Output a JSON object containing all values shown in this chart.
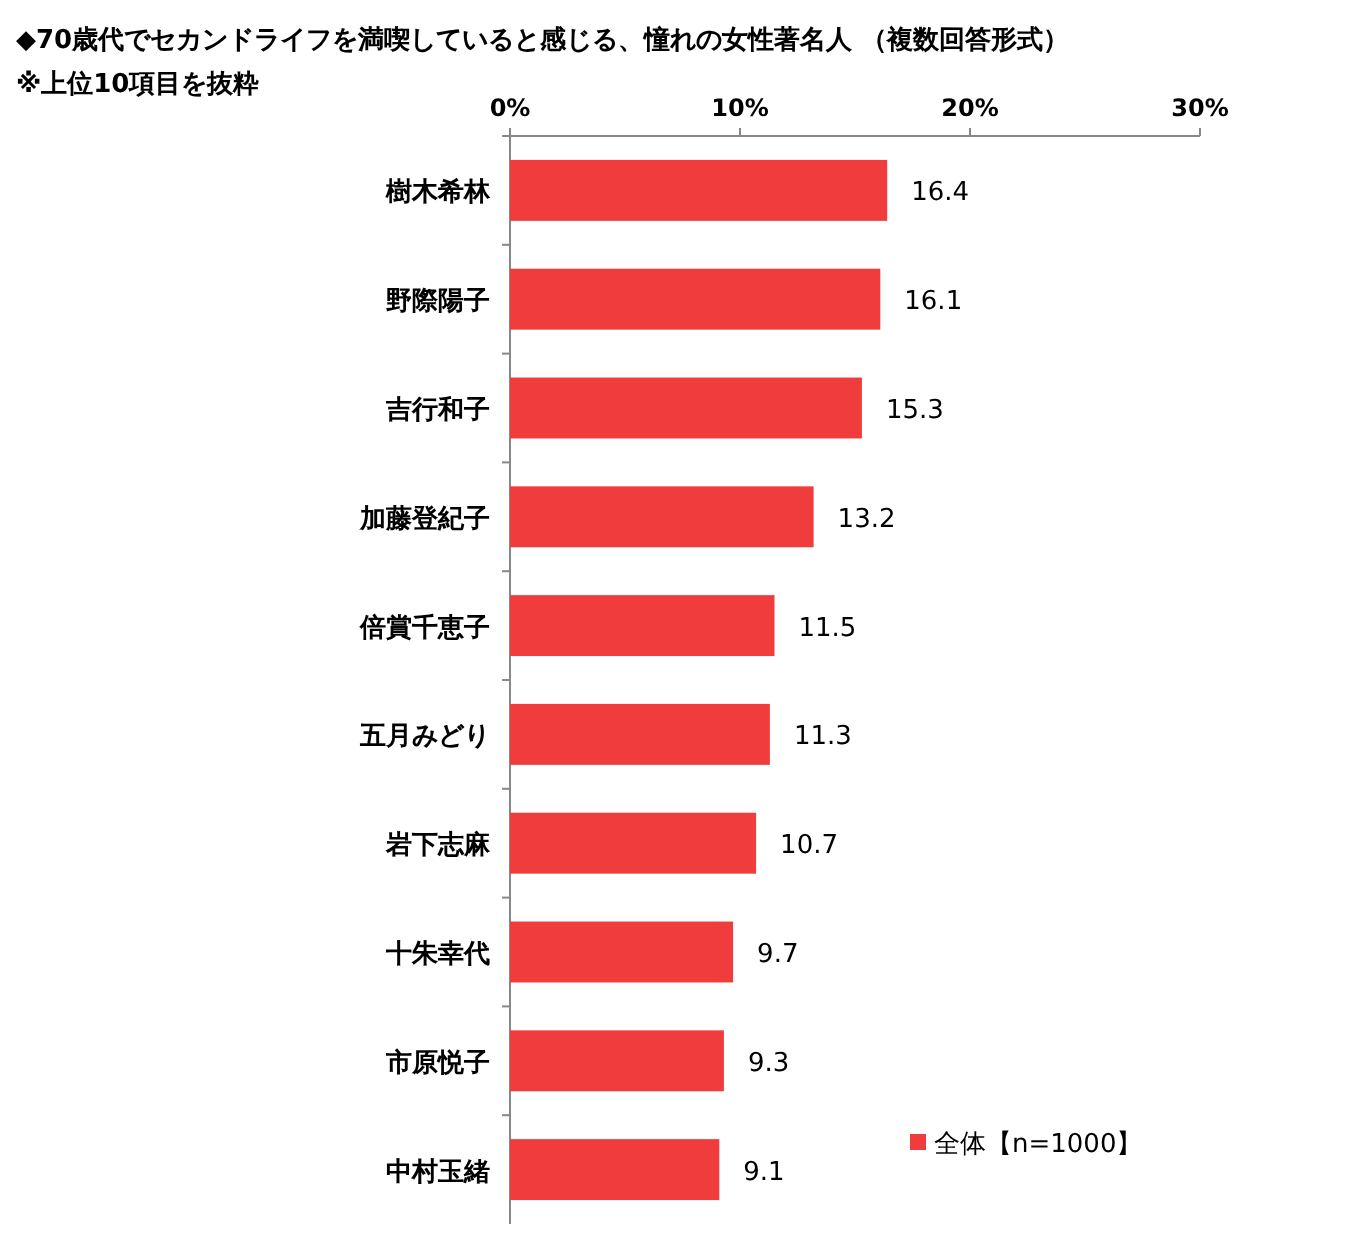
{
  "chart_data": {
    "type": "bar",
    "orientation": "horizontal",
    "title": "◆70歳代でセカンドライフを満喫していると感じる、憧れの女性著名人 （複数回答形式）",
    "subtitle": "※上位10項目を抜粋",
    "categories": [
      "樹木希林",
      "野際陽子",
      "吉行和子",
      "加藤登紀子",
      "倍賞千恵子",
      "五月みどり",
      "岩下志麻",
      "十朱幸代",
      "市原悦子",
      "中村玉緒"
    ],
    "series": [
      {
        "name": "全体【n=1000】",
        "color": "#f03c3c",
        "values": [
          16.4,
          16.1,
          15.3,
          13.2,
          11.5,
          11.3,
          10.7,
          9.7,
          9.3,
          9.1
        ]
      }
    ],
    "xlim": [
      0,
      30
    ],
    "xticks": [
      {
        "value": 0,
        "label": "0%"
      },
      {
        "value": 10,
        "label": "10%"
      },
      {
        "value": 20,
        "label": "20%"
      },
      {
        "value": 30,
        "label": "30%"
      }
    ],
    "data_labels": true,
    "legend": "bottom right"
  }
}
